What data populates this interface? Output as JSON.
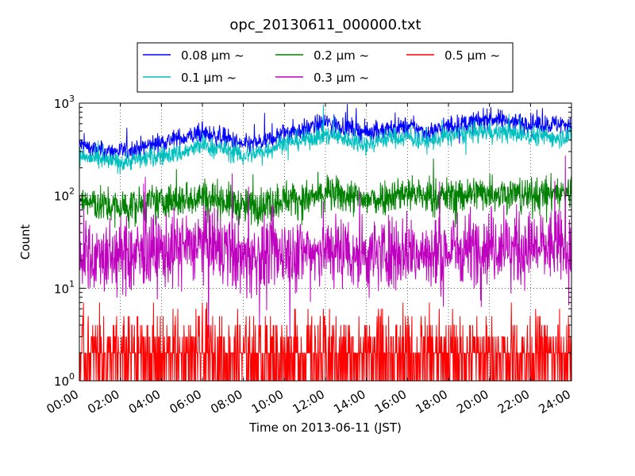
{
  "chart_data": {
    "type": "line",
    "title": "opc_20130611_000000.txt",
    "xlabel": "Time on 2013-06-11 (JST)",
    "ylabel": "Count",
    "yscale": "log",
    "ylim": [
      1,
      1000
    ],
    "xlim": [
      "00:00",
      "24:00"
    ],
    "x_ticks": [
      "00:00",
      "02:00",
      "04:00",
      "06:00",
      "08:00",
      "10:00",
      "12:00",
      "14:00",
      "16:00",
      "18:00",
      "20:00",
      "22:00",
      "24:00"
    ],
    "y_ticks": [
      {
        "base": "10",
        "exp": "0",
        "value": 1
      },
      {
        "base": "10",
        "exp": "1",
        "value": 10
      },
      {
        "base": "10",
        "exp": "2",
        "value": 100
      },
      {
        "base": "10",
        "exp": "3",
        "value": 1000
      }
    ],
    "grid": true,
    "legend_placement": "top-center",
    "x": [
      "00:00",
      "01:00",
      "02:00",
      "03:00",
      "04:00",
      "05:00",
      "06:00",
      "07:00",
      "08:00",
      "09:00",
      "10:00",
      "11:00",
      "12:00",
      "13:00",
      "14:00",
      "15:00",
      "16:00",
      "17:00",
      "18:00",
      "19:00",
      "20:00",
      "21:00",
      "22:00",
      "23:00",
      "24:00"
    ],
    "series": [
      {
        "name": "0.08 μm ~",
        "color": "#0000ff",
        "noise": 0.12,
        "values": [
          360,
          300,
          300,
          330,
          380,
          420,
          470,
          430,
          350,
          380,
          480,
          520,
          620,
          560,
          480,
          520,
          560,
          480,
          560,
          610,
          680,
          640,
          600,
          590,
          600
        ]
      },
      {
        "name": "0.1 μm ~",
        "color": "#00bfbf",
        "noise": 0.12,
        "values": [
          270,
          240,
          230,
          250,
          270,
          290,
          350,
          320,
          270,
          300,
          380,
          400,
          460,
          410,
          360,
          420,
          430,
          380,
          440,
          470,
          500,
          470,
          450,
          430,
          440
        ]
      },
      {
        "name": "0.2 μm ~",
        "color": "#008000",
        "noise": 0.22,
        "values": [
          90,
          78,
          74,
          80,
          85,
          90,
          100,
          90,
          75,
          80,
          95,
          90,
          105,
          100,
          88,
          100,
          110,
          95,
          100,
          105,
          110,
          105,
          100,
          105,
          110
        ]
      },
      {
        "name": "0.3 μm ~",
        "color": "#bf00bf",
        "noise": 0.45,
        "values": [
          24,
          22,
          22,
          24,
          25,
          27,
          30,
          26,
          21,
          22,
          25,
          24,
          26,
          26,
          22,
          25,
          26,
          22,
          25,
          28,
          30,
          28,
          27,
          28,
          28
        ]
      },
      {
        "name": "0.5 μm ~",
        "color": "#ff0000",
        "noise": 1.0,
        "values": [
          1.8,
          1.8,
          1.8,
          1.8,
          1.8,
          1.8,
          1.8,
          1.8,
          1.8,
          1.8,
          1.8,
          1.8,
          1.8,
          1.8,
          1.8,
          1.8,
          1.8,
          1.8,
          1.8,
          1.8,
          1.8,
          1.8,
          1.8,
          1.8,
          1.8
        ]
      }
    ]
  }
}
